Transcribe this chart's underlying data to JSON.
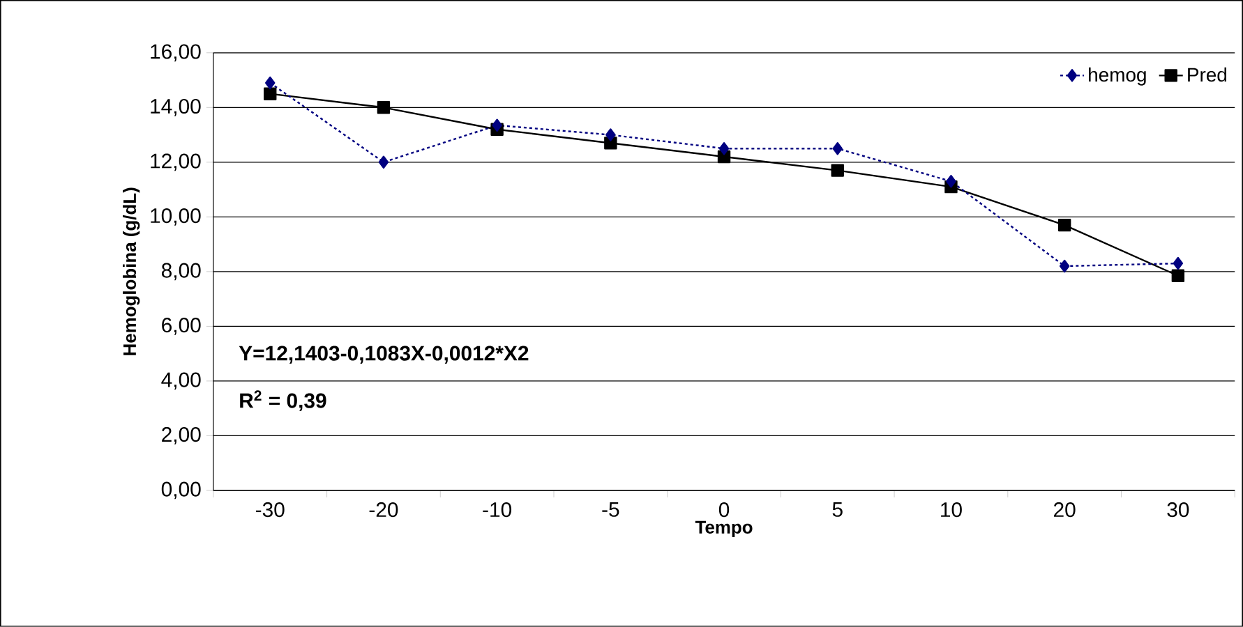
{
  "chart_data": {
    "type": "line",
    "xlabel": "Tempo",
    "ylabel": "Hemoglobina (g/dL)",
    "categories": [
      "-30",
      "-20",
      "-10",
      "-5",
      "0",
      "5",
      "10",
      "20",
      "30"
    ],
    "series": [
      {
        "name": "hemog",
        "color": "#000080",
        "marker": "diamond",
        "line_style": "dotted",
        "values": [
          14.9,
          12.0,
          13.35,
          13.0,
          12.5,
          12.5,
          11.3,
          8.2,
          8.3
        ]
      },
      {
        "name": "Pred",
        "color": "#000000",
        "marker": "square",
        "line_style": "solid",
        "values": [
          14.5,
          14.0,
          13.2,
          12.7,
          12.2,
          11.7,
          11.1,
          9.7,
          7.85
        ]
      }
    ],
    "ylim": [
      0,
      16
    ],
    "yticks": [
      {
        "value": 0,
        "label": "0,00"
      },
      {
        "value": 2,
        "label": "2,00"
      },
      {
        "value": 4,
        "label": "4,00"
      },
      {
        "value": 6,
        "label": "6,00"
      },
      {
        "value": 8,
        "label": "8,00"
      },
      {
        "value": 10,
        "label": "10,00"
      },
      {
        "value": 12,
        "label": "12,00"
      },
      {
        "value": 14,
        "label": "14,00"
      },
      {
        "value": 16,
        "label": "16,00"
      }
    ],
    "grid": "y",
    "legend": "top right",
    "annotations": [
      "Y=12,1403-0,1083X-0,0012*X2",
      "R$^{2}$ = 0,39"
    ]
  }
}
